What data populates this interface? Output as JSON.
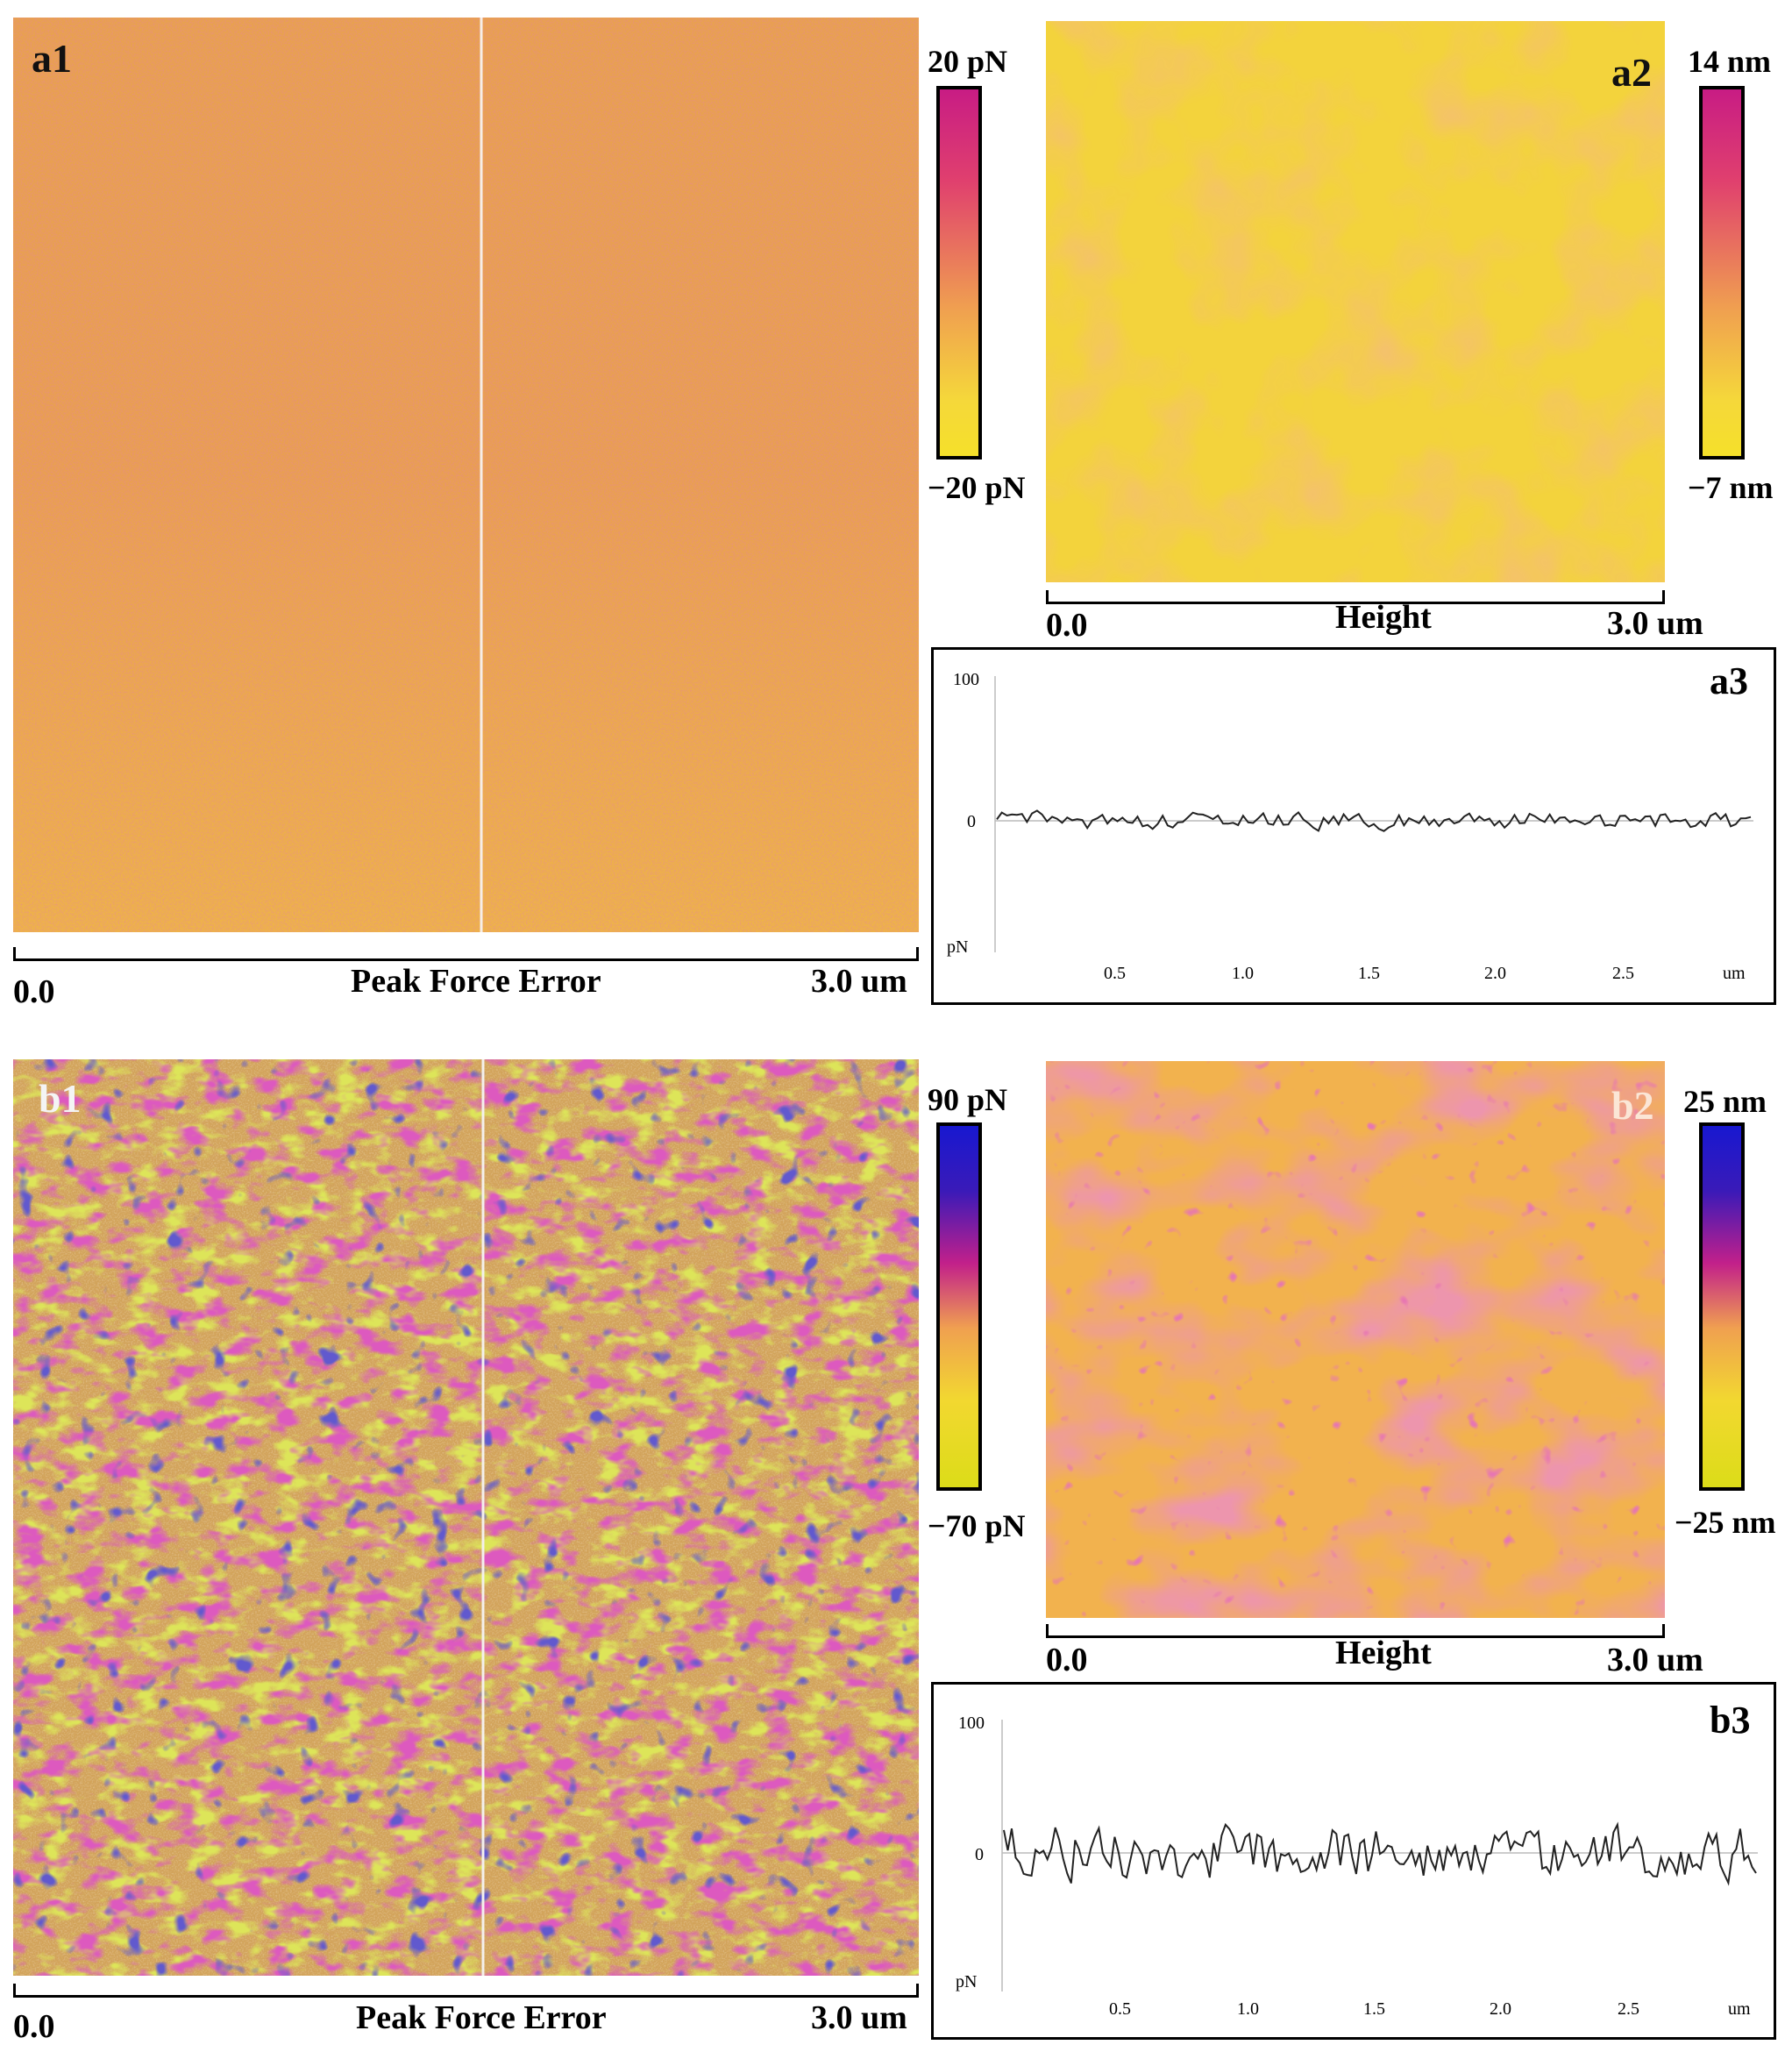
{
  "top": {
    "a1": {
      "label": "a1",
      "scale_start": "0.0",
      "scale_title": "Peak Force Error",
      "scale_end": "3.0 um"
    },
    "a1_colorbar": {
      "max": "20 pN",
      "min": "−20 pN",
      "colors": [
        "#cc1f80",
        "#f0a050",
        "#f5e02a"
      ]
    },
    "a2": {
      "label": "a2",
      "scale_start": "0.0",
      "scale_title": "Height",
      "scale_end": "3.0 um"
    },
    "a2_colorbar": {
      "max": "14 nm",
      "min": "−7 nm",
      "colors": [
        "#cc1f80",
        "#f0a050",
        "#f5e02a"
      ]
    },
    "a3": {
      "label": "a3",
      "y_top": "100",
      "y_zero": "0",
      "y_unit": "pN",
      "x_ticks": [
        "0.5",
        "1.0",
        "1.5",
        "2.0",
        "2.5"
      ],
      "x_unit": "um"
    }
  },
  "bottom": {
    "b1": {
      "label": "b1",
      "scale_start": "0.0",
      "scale_title": "Peak Force Error",
      "scale_end": "3.0 um"
    },
    "b1_colorbar": {
      "max": "90 pN",
      "min": "−70 pN",
      "colors": [
        "#1a1ad0",
        "#c2208a",
        "#f0a050",
        "#e0e020"
      ]
    },
    "b2": {
      "label": "b2",
      "scale_start": "0.0",
      "scale_title": "Height",
      "scale_end": "3.0 um"
    },
    "b2_colorbar": {
      "max": "25 nm",
      "min": "−25 nm",
      "colors": [
        "#1a1ad0",
        "#c2208a",
        "#f0a050",
        "#e0e020"
      ]
    },
    "b3": {
      "label": "b3",
      "y_top": "100",
      "y_zero": "0",
      "y_unit": "pN",
      "x_ticks": [
        "0.5",
        "1.0",
        "1.5",
        "2.0",
        "2.5"
      ],
      "x_unit": "um"
    }
  }
}
